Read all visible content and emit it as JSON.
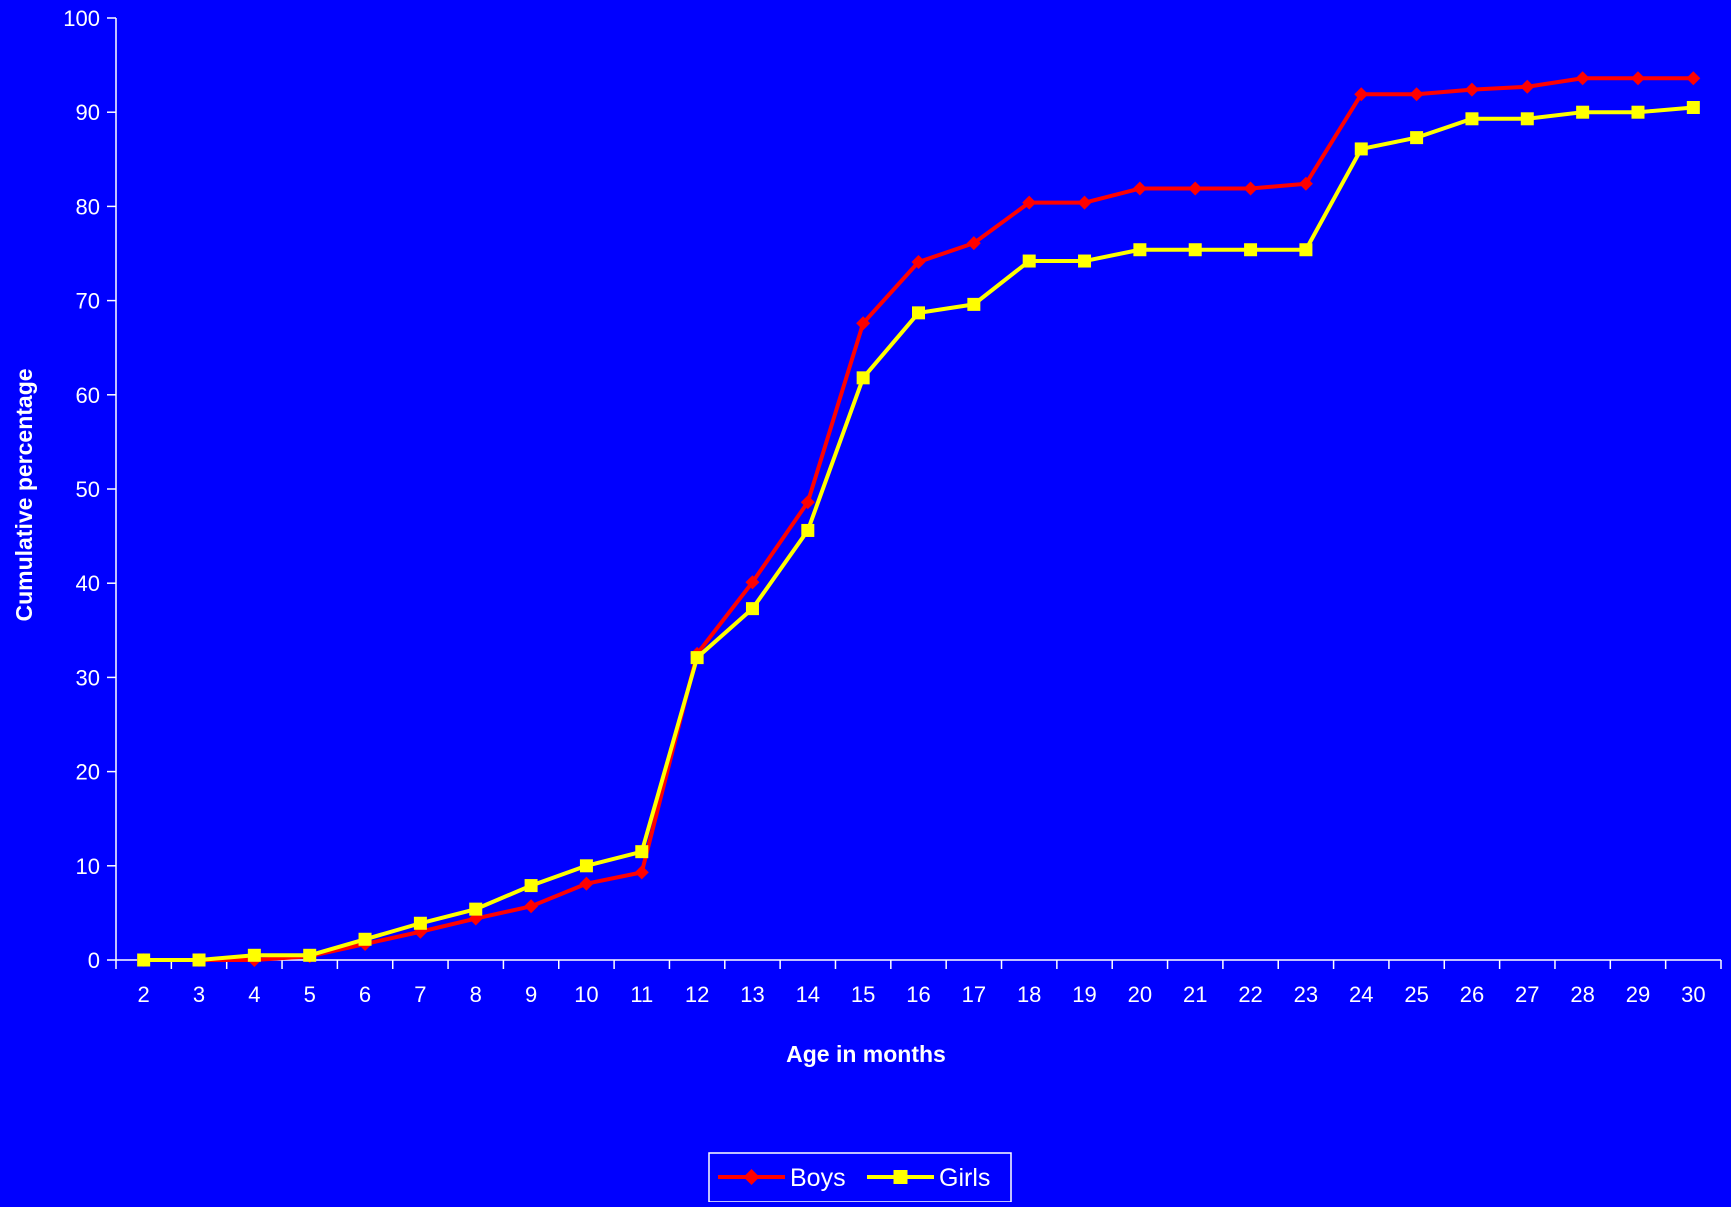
{
  "chart_data": {
    "type": "line",
    "xlabel": "Age in months",
    "ylabel": "Cumulative percentage",
    "ylim": [
      0,
      100
    ],
    "yticks": [
      0,
      10,
      20,
      30,
      40,
      50,
      60,
      70,
      80,
      90,
      100
    ],
    "grid": false,
    "legend_position": "bottom",
    "background_color": "#0000ff",
    "axis_color": "#ffffff",
    "categories": [
      "2",
      "3",
      "4",
      "5",
      "6",
      "7",
      "8",
      "9",
      "10",
      "11",
      "12",
      "13",
      "14",
      "15",
      "16",
      "17",
      "18",
      "19",
      "20",
      "21",
      "22",
      "23",
      "24",
      "25",
      "26",
      "27",
      "28",
      "29",
      "30"
    ],
    "series": [
      {
        "name": "Boys",
        "color": "#ff0000",
        "marker": "diamond",
        "values": [
          0,
          0,
          0,
          0.4,
          1.7,
          3.0,
          4.4,
          5.7,
          8.1,
          9.3,
          32.5,
          40.1,
          48.6,
          67.6,
          74.1,
          76.1,
          80.4,
          80.4,
          81.9,
          81.9,
          81.9,
          82.4,
          91.9,
          91.9,
          92.4,
          92.7,
          93.6,
          93.6,
          93.6
        ]
      },
      {
        "name": "Girls",
        "color": "#ffff00",
        "marker": "square",
        "values": [
          0,
          0,
          0.5,
          0.5,
          2.2,
          3.9,
          5.4,
          7.9,
          10.0,
          11.5,
          32.1,
          37.3,
          45.6,
          61.8,
          68.7,
          69.6,
          74.2,
          74.2,
          75.4,
          75.4,
          75.4,
          75.4,
          86.1,
          87.3,
          89.3,
          89.3,
          90.0,
          90.0,
          90.5
        ]
      }
    ]
  }
}
